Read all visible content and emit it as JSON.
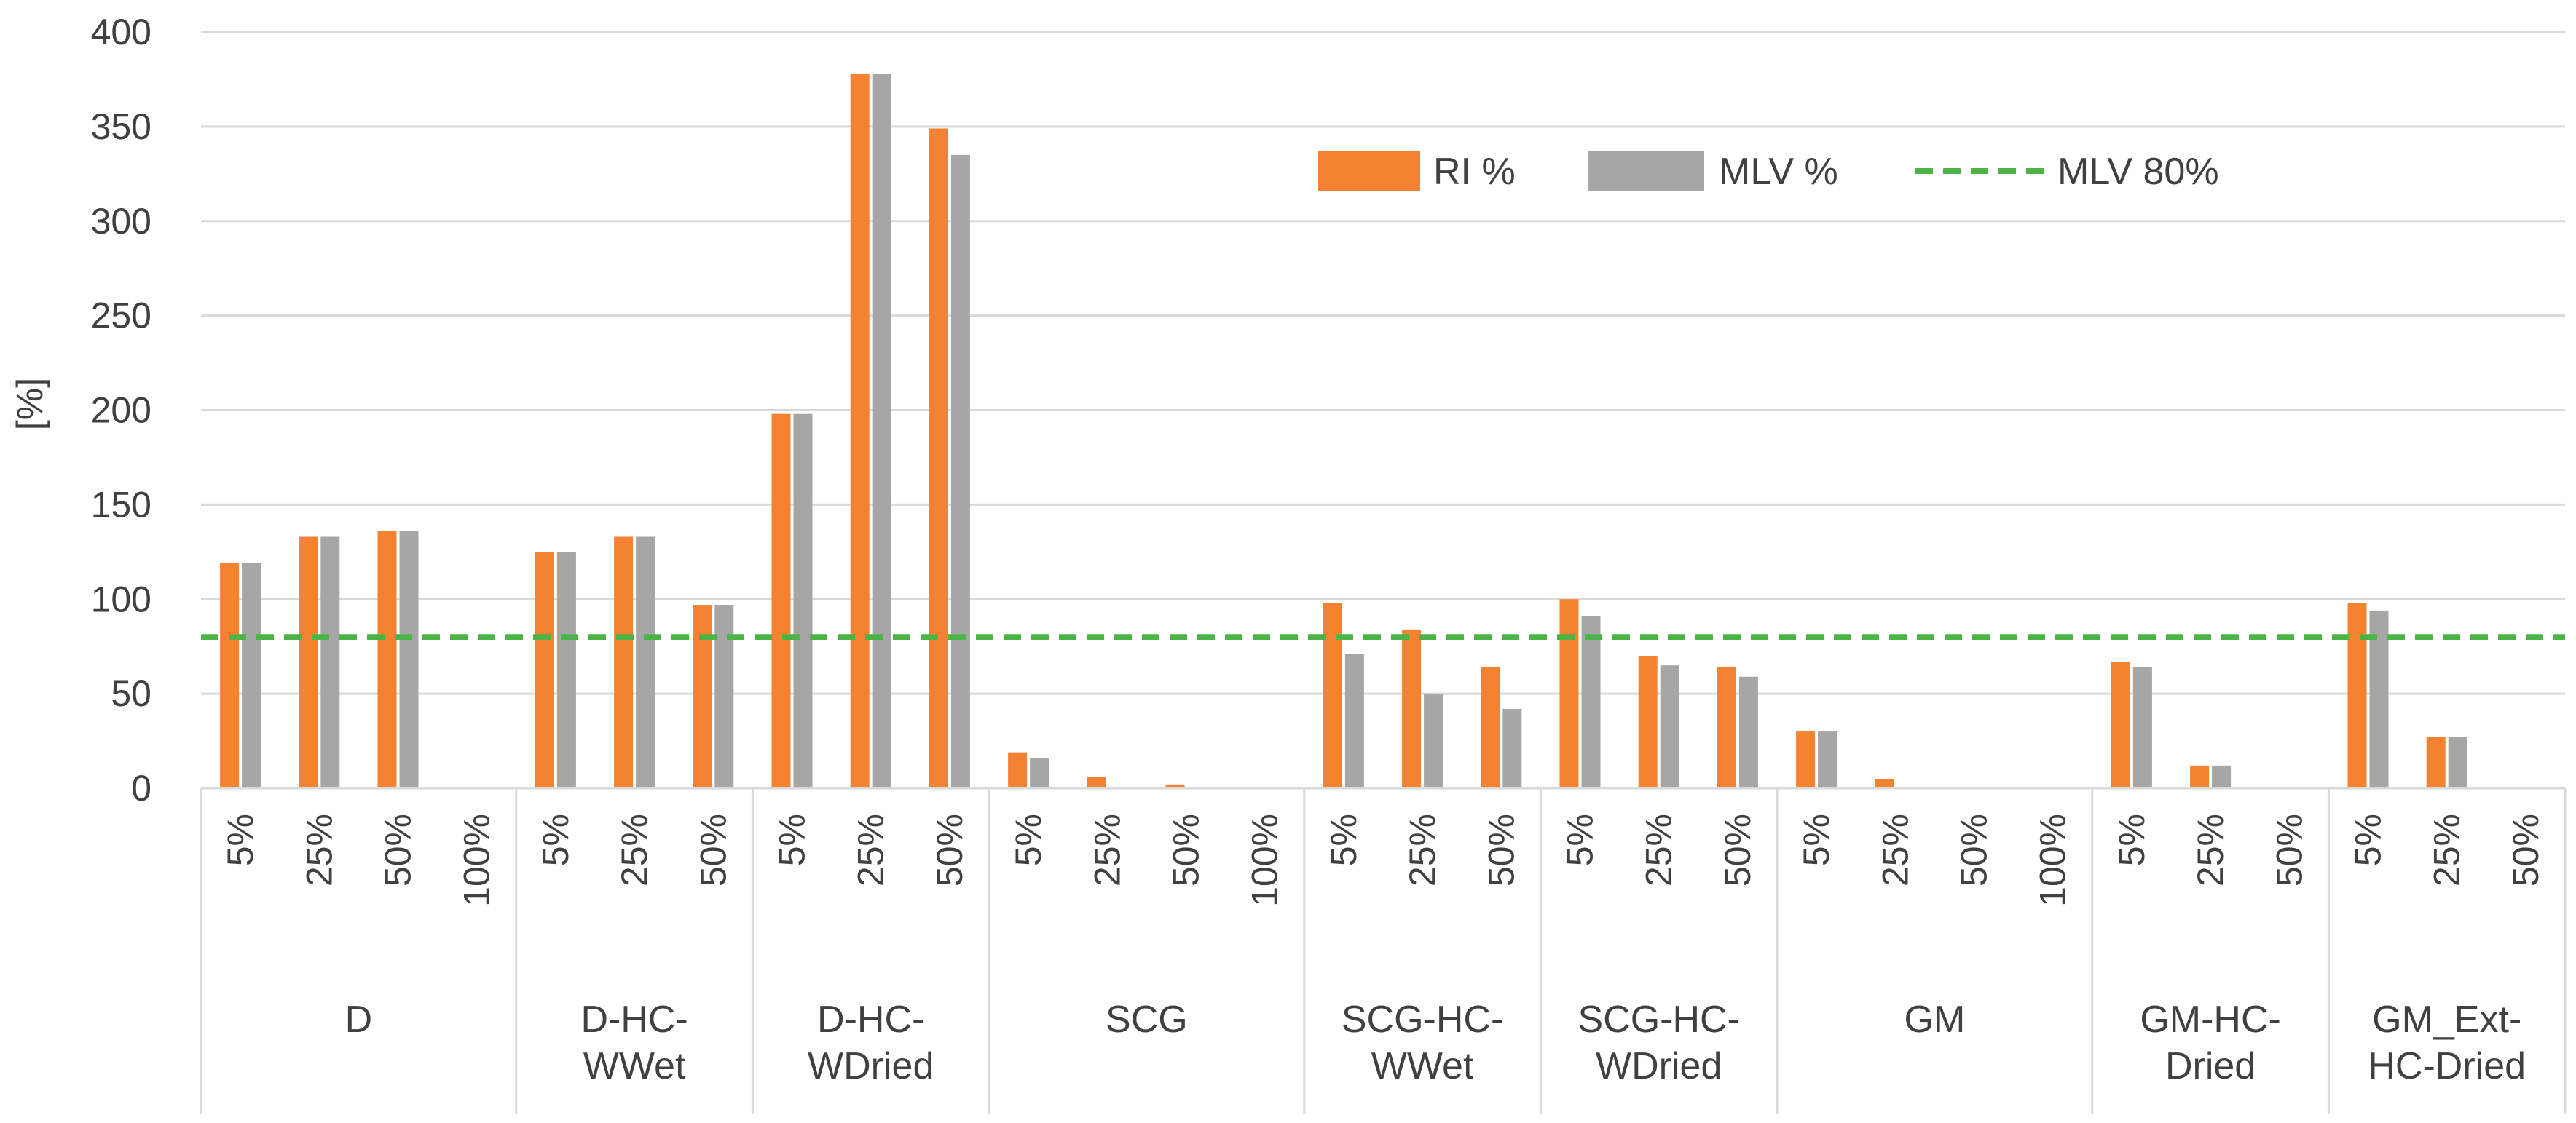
{
  "chart_data": {
    "type": "bar",
    "title": "",
    "xlabel": "",
    "ylabel": "[%]",
    "ylim": [
      0,
      400
    ],
    "yticks": [
      "0",
      "50",
      "100",
      "150",
      "200",
      "250",
      "300",
      "350",
      "400"
    ],
    "grid": true,
    "legend_position": "top-right",
    "groups": [
      {
        "label_lines": [
          "D"
        ],
        "categories": [
          "5%",
          "25%",
          "50%",
          "100%"
        ]
      },
      {
        "label_lines": [
          "D-HC-",
          "WWet"
        ],
        "categories": [
          "5%",
          "25%",
          "50%"
        ]
      },
      {
        "label_lines": [
          "D-HC-",
          "WDried"
        ],
        "categories": [
          "5%",
          "25%",
          "50%"
        ]
      },
      {
        "label_lines": [
          "SCG"
        ],
        "categories": [
          "5%",
          "25%",
          "50%",
          "100%"
        ]
      },
      {
        "label_lines": [
          "SCG-HC-",
          "WWet"
        ],
        "categories": [
          "5%",
          "25%",
          "50%"
        ]
      },
      {
        "label_lines": [
          "SCG-HC-",
          "WDried"
        ],
        "categories": [
          "5%",
          "25%",
          "50%"
        ]
      },
      {
        "label_lines": [
          "GM"
        ],
        "categories": [
          "5%",
          "25%",
          "50%",
          "100%"
        ]
      },
      {
        "label_lines": [
          "GM-HC-",
          "Dried"
        ],
        "categories": [
          "5%",
          "25%",
          "50%"
        ]
      },
      {
        "label_lines": [
          "GM_Ext-",
          "HC-Dried"
        ],
        "categories": [
          "5%",
          "25%",
          "50%"
        ]
      }
    ],
    "series": [
      {
        "name": "RI %",
        "color": "#f58231",
        "type": "bar",
        "values": [
          119,
          133,
          136,
          0,
          125,
          133,
          97,
          198,
          378,
          349,
          19,
          6,
          2,
          0,
          98,
          84,
          64,
          100,
          70,
          64,
          30,
          5,
          0,
          0,
          67,
          12,
          0,
          98,
          27,
          0
        ]
      },
      {
        "name": "MLV %",
        "color": "#a6a6a6",
        "type": "bar",
        "values": [
          119,
          133,
          136,
          0,
          125,
          133,
          97,
          198,
          378,
          335,
          16,
          0,
          0,
          0,
          71,
          50,
          42,
          91,
          65,
          59,
          30,
          0,
          0,
          0,
          64,
          12,
          0,
          94,
          27,
          0
        ]
      },
      {
        "name": "MLV 80%",
        "color": "#4cb446",
        "type": "line",
        "value": 80
      }
    ]
  }
}
